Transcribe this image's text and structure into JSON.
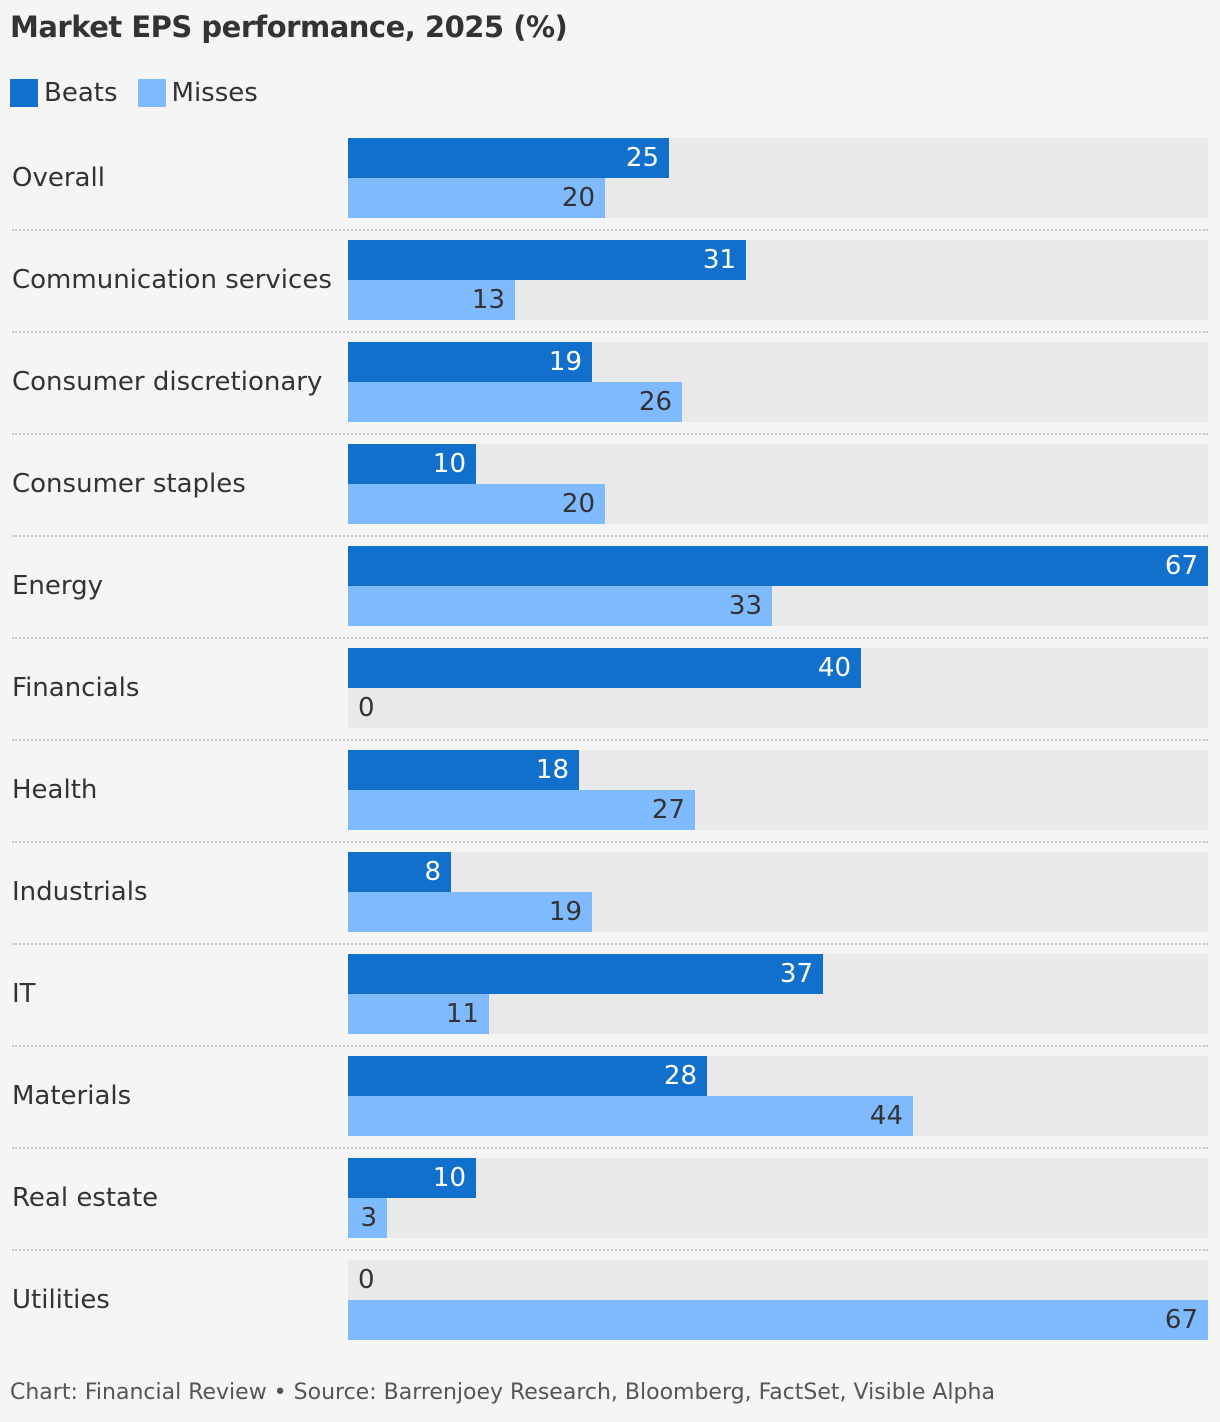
{
  "title": "Market EPS performance, 2025 (%)",
  "colors": {
    "beats": "#1170cc",
    "misses": "#7fbaff",
    "track": "#e9e9e9"
  },
  "legend": [
    {
      "label": "Beats",
      "key": "beats"
    },
    {
      "label": "Misses",
      "key": "misses"
    }
  ],
  "footer": "Chart: Financial Review • Source: Barrenjoey Research, Bloomberg, FactSet, Visible Alpha",
  "chart_data": {
    "type": "bar",
    "orientation": "horizontal",
    "categories": [
      "Overall",
      "Communication services",
      "Consumer discretionary",
      "Consumer staples",
      "Energy",
      "Financials",
      "Health",
      "Industrials",
      "IT",
      "Materials",
      "Real estate",
      "Utilities"
    ],
    "series": [
      {
        "name": "Beats",
        "values": [
          25,
          31,
          19,
          10,
          67,
          40,
          18,
          8,
          37,
          28,
          10,
          0
        ]
      },
      {
        "name": "Misses",
        "values": [
          20,
          13,
          26,
          20,
          33,
          0,
          27,
          19,
          11,
          44,
          3,
          67
        ]
      }
    ],
    "xlim": [
      0,
      67
    ],
    "legend_position": "top-left",
    "grid": false
  }
}
